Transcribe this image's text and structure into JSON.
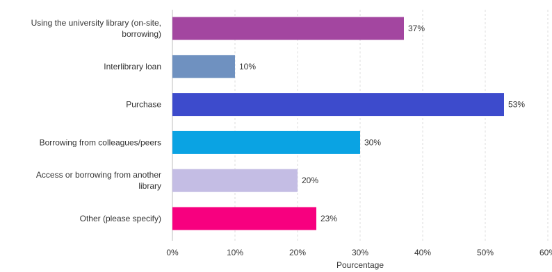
{
  "chart_data": {
    "type": "bar",
    "orientation": "horizontal",
    "categories": [
      [
        "Using the university library (on-site,",
        "borrowing)"
      ],
      [
        "Interlibrary loan"
      ],
      [
        "Purchase"
      ],
      [
        "Borrowing from colleagues/peers"
      ],
      [
        "Access or borrowing from another",
        "library"
      ],
      [
        "Other (please specify)"
      ]
    ],
    "values": [
      37,
      10,
      53,
      30,
      20,
      23
    ],
    "value_labels": [
      "37%",
      "10%",
      "53%",
      "30%",
      "20%",
      "23%"
    ],
    "colors": [
      "#a346a0",
      "#6f91c0",
      "#3d4bcc",
      "#0aa3e3",
      "#c4bde4",
      "#f7007f"
    ],
    "xlabel": "Pourcentage",
    "ylabel": "",
    "xlim": [
      0,
      60
    ],
    "xticks": [
      0,
      10,
      20,
      30,
      40,
      50,
      60
    ],
    "xtick_labels": [
      "0%",
      "10%",
      "20%",
      "30%",
      "40%",
      "50%",
      "60%"
    ],
    "grid": true,
    "legend": "none"
  }
}
